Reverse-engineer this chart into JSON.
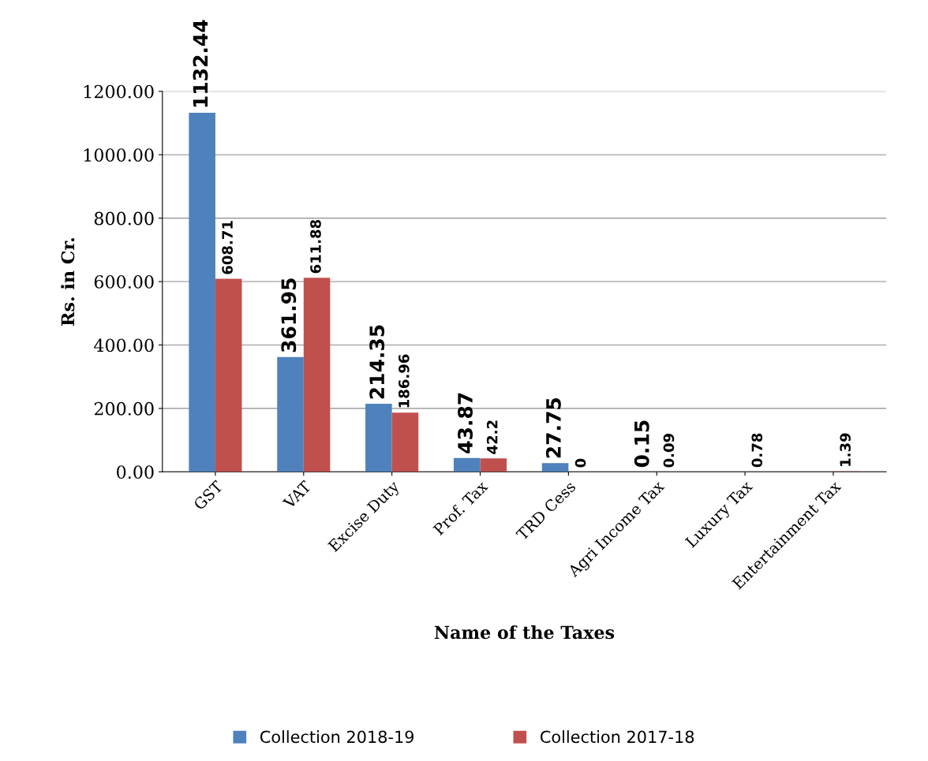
{
  "chart_data": {
    "type": "bar",
    "xlabel": "Name of the Taxes",
    "ylabel": "Rs. in Cr.",
    "categories": [
      "GST",
      "VAT",
      "Excise Duty",
      "Prof. Tax",
      "TRD Cess",
      "Agri Income Tax",
      "Luxury Tax",
      "Entertainment Tax"
    ],
    "series": [
      {
        "name": "Collection 2018-19",
        "color": "#4f81bd",
        "values": [
          1132.44,
          361.95,
          214.35,
          43.87,
          27.75,
          0.15,
          null,
          null
        ],
        "value_labels": [
          "1132.44",
          "361.95",
          "214.35",
          "43.87",
          "27.75",
          "0.15",
          null,
          null
        ]
      },
      {
        "name": "Collection 2017-18",
        "color": "#c0504d",
        "values": [
          608.71,
          611.88,
          186.96,
          42.2,
          0,
          0.09,
          0.78,
          1.39
        ],
        "value_labels": [
          "608.71",
          "611.88",
          "186.96",
          "42.2",
          "0",
          "0.09",
          "0.78",
          "1.39"
        ]
      }
    ],
    "ylim": [
      0,
      1200
    ],
    "yticks": [
      {
        "value": 0,
        "label": "0.00"
      },
      {
        "value": 200,
        "label": "200.00"
      },
      {
        "value": 400,
        "label": "400.00"
      },
      {
        "value": 600,
        "label": "600.00"
      },
      {
        "value": 800,
        "label": "800.00"
      },
      {
        "value": 1000,
        "label": "1000.00"
      },
      {
        "value": 1200,
        "label": "1200.00"
      }
    ],
    "grid": "y",
    "legend": "bottom"
  }
}
